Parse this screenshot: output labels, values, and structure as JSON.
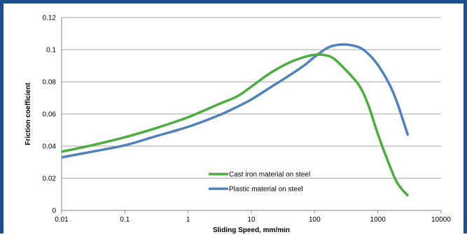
{
  "chart_data": {
    "type": "line",
    "title": "",
    "xlabel": "Sliding Speed, mm/min",
    "ylabel": "Friction coefficient",
    "xscale": "log",
    "xlim": [
      0.01,
      10000
    ],
    "ylim": [
      0,
      0.12
    ],
    "x_ticks": [
      "0.01",
      "0.1",
      "1",
      "10",
      "100",
      "1000",
      "10000"
    ],
    "y_ticks": [
      "0",
      "0.02",
      "0.04",
      "0.06",
      "0.08",
      "0.1",
      "0.12"
    ],
    "grid": "horizontal",
    "legend_position": "lower-center",
    "series": [
      {
        "name": "Cast iron material on steel",
        "color": "#4cad3f",
        "points": [
          [
            0.01,
            0.0365
          ],
          [
            0.03,
            0.0405
          ],
          [
            0.1,
            0.0455
          ],
          [
            0.3,
            0.051
          ],
          [
            1,
            0.058
          ],
          [
            3,
            0.066
          ],
          [
            6,
            0.071
          ],
          [
            10,
            0.077
          ],
          [
            20,
            0.0855
          ],
          [
            40,
            0.092
          ],
          [
            70,
            0.0955
          ],
          [
            100,
            0.0968
          ],
          [
            150,
            0.0965
          ],
          [
            200,
            0.0945
          ],
          [
            300,
            0.088
          ],
          [
            500,
            0.078
          ],
          [
            700,
            0.066
          ],
          [
            1000,
            0.0475
          ],
          [
            1400,
            0.032
          ],
          [
            2000,
            0.0175
          ],
          [
            3000,
            0.009
          ]
        ]
      },
      {
        "name": "Plastic material on steel",
        "color": "#4f81bd",
        "points": [
          [
            0.01,
            0.033
          ],
          [
            0.03,
            0.0365
          ],
          [
            0.1,
            0.0405
          ],
          [
            0.3,
            0.046
          ],
          [
            1,
            0.052
          ],
          [
            3,
            0.059
          ],
          [
            6,
            0.0645
          ],
          [
            10,
            0.069
          ],
          [
            20,
            0.0765
          ],
          [
            40,
            0.084
          ],
          [
            70,
            0.0905
          ],
          [
            100,
            0.0955
          ],
          [
            150,
            0.1005
          ],
          [
            200,
            0.1025
          ],
          [
            300,
            0.1032
          ],
          [
            500,
            0.1015
          ],
          [
            700,
            0.0975
          ],
          [
            1000,
            0.0905
          ],
          [
            1500,
            0.079
          ],
          [
            2000,
            0.0675
          ],
          [
            3000,
            0.0465
          ]
        ]
      }
    ]
  }
}
